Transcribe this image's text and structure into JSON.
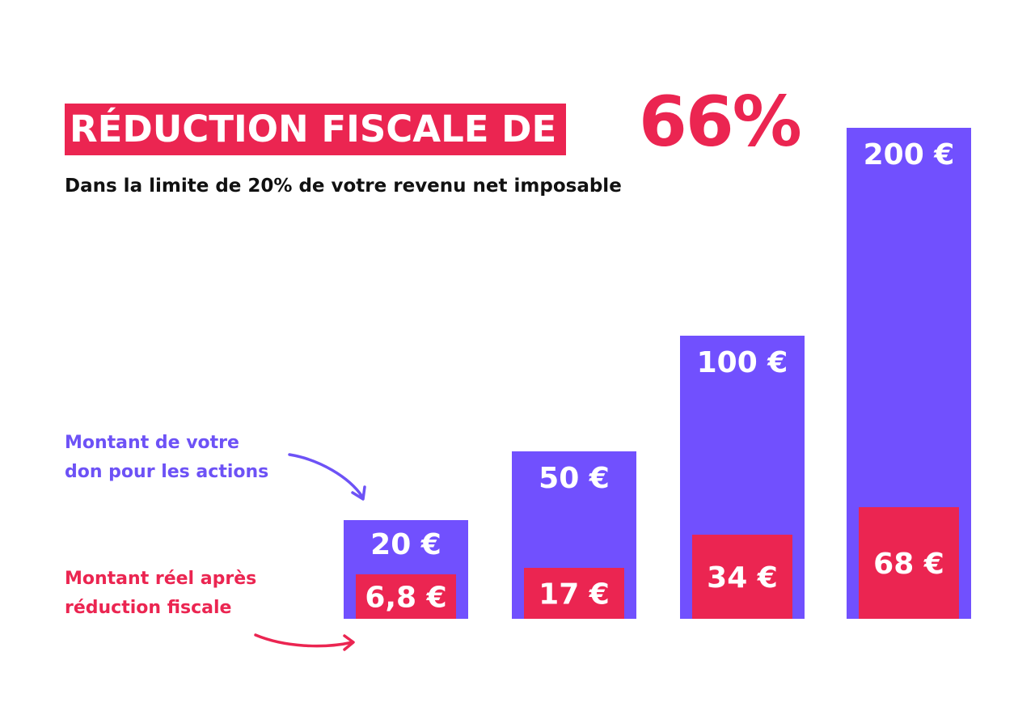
{
  "header": {
    "title": "RÉDUCTION FISCALE DE",
    "title_percent": "66%",
    "subtitle": "Dans la limite de 20% de votre revenu net imposable"
  },
  "legend": {
    "donation_lines": [
      "Montant de votre",
      "don pour les actions"
    ],
    "net_lines": [
      "Montant réel après",
      "réduction fiscale"
    ]
  },
  "colors": {
    "donation": "#7150fe",
    "net": "#eb2551",
    "legend_purple": "#6d52f6",
    "arrow_purple": "#6d52f6",
    "arrow_red": "#eb2551"
  },
  "chart_data": {
    "type": "bar",
    "title": "RÉDUCTION FISCALE DE 66%",
    "subtitle": "Dans la limite de 20% de votre revenu net imposable",
    "series": [
      {
        "name": "Montant de votre don pour les actions",
        "values": [
          20,
          50,
          100,
          200
        ],
        "labels": [
          "20 €",
          "50 €",
          "100 €",
          "200 €"
        ]
      },
      {
        "name": "Montant réel après réduction fiscale",
        "values": [
          6.8,
          17,
          34,
          68
        ],
        "labels": [
          "6,8 €",
          "17 €",
          "34 €",
          "68 €"
        ]
      }
    ],
    "overlay": true,
    "grid": false,
    "legend_position": "left"
  }
}
